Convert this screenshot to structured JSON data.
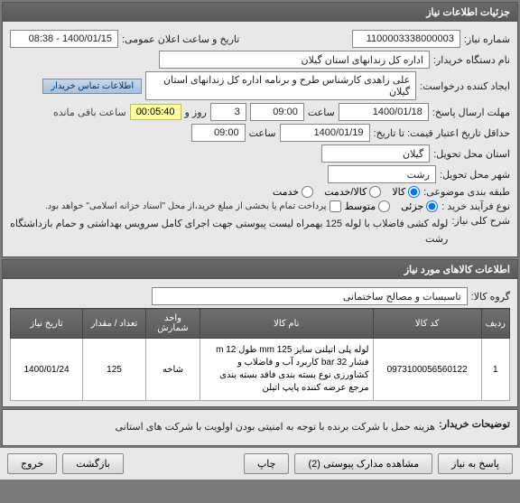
{
  "sections": {
    "info": {
      "title": "جزئیات اطلاعات نیاز",
      "reqNumLabel": "شماره نیاز:",
      "reqNum": "1100003338000003",
      "announceLabel": "تاریخ و ساعت اعلان عمومی:",
      "announce": "1400/01/15 - 08:38",
      "orgLabel": "نام دستگاه خریدار:",
      "org": "اداره کل زندانهای استان گیلان",
      "creatorLabel": "ایجاد کننده درخواست:",
      "creator": "علی زاهدی کارشناس طرح و برنامه اداره کل زندانهای استان گیلان",
      "contactBtn": "اطلاعات تماس خریدار",
      "deadlineLabel": "مهلت ارسال پاسخ:",
      "deadlineDate": "1400/01/18",
      "timeLabel": "ساعت",
      "deadlineTime": "09:00",
      "remainDays": "3",
      "dayAnd": "روز و",
      "remainTime": "00:05:40",
      "remainText": "ساعت باقی مانده",
      "validityLabel": "حداقل تاریخ اعتبار قیمت: تا تاریخ:",
      "validityDate": "1400/01/19",
      "validityTime": "09:00",
      "provinceLabel": "استان محل تحویل:",
      "province": "گیلان",
      "cityLabel": "شهر محل تحویل:",
      "city": "رشت",
      "classLabel": "طبقه بندی موضوعی:",
      "classGoods": "کالا",
      "classService": "کالا/خدمت",
      "classServiceOnly": "خدمت",
      "buyTypeLabel": "نوع فرآیند خرید :",
      "buyLow": "جزئی",
      "buyMid": "متوسط",
      "payNote": "پرداخت تمام یا بخشی از مبلغ خرید،از محل \"اسناد خزانه اسلامی\" خواهد بود.",
      "descLabel": "شرح کلی نیاز:",
      "desc": "لوله کشی فاضلاب با لوله 125 بهمراه لیست پیوستی جهت اجرای کامل سرویس بهداشتی و حمام بازداشتگاه رشت"
    },
    "items": {
      "title": "اطلاعات کالاهای مورد نیاز",
      "groupLabel": "گروه کالا:",
      "group": "تاسیسات و مصالح ساختمانی",
      "headers": [
        "ردیف",
        "کد کالا",
        "نام کالا",
        "واحد شمارش",
        "تعداد / مقدار",
        "تاریخ نیاز"
      ],
      "rows": [
        {
          "idx": "1",
          "code": "0973100056560122",
          "name": "لوله پلی اتیلنی سایز 125 mm طول 12 m فشار 32 bar کاربرد آب و فاضلاب و کشاورزی نوع بسته بندی فاقد بسته بندی مرجع عرضه کننده پایپ اتیلن",
          "unit": "شاخه",
          "qty": "125",
          "date": "1400/01/24"
        }
      ]
    },
    "notes": {
      "buyerNoteLabel": "توضیحات خریدار:",
      "buyerNote": "هزینه حمل با شرکت برنده  با توجه به امنیتی بودن اولویت با شرکت های استانی"
    },
    "buttons": {
      "reply": "پاسخ به نیاز",
      "attachments": "مشاهده مدارک پیوستی (2)",
      "print": "چاپ",
      "back": "بازگشت",
      "exit": "خروج"
    }
  }
}
